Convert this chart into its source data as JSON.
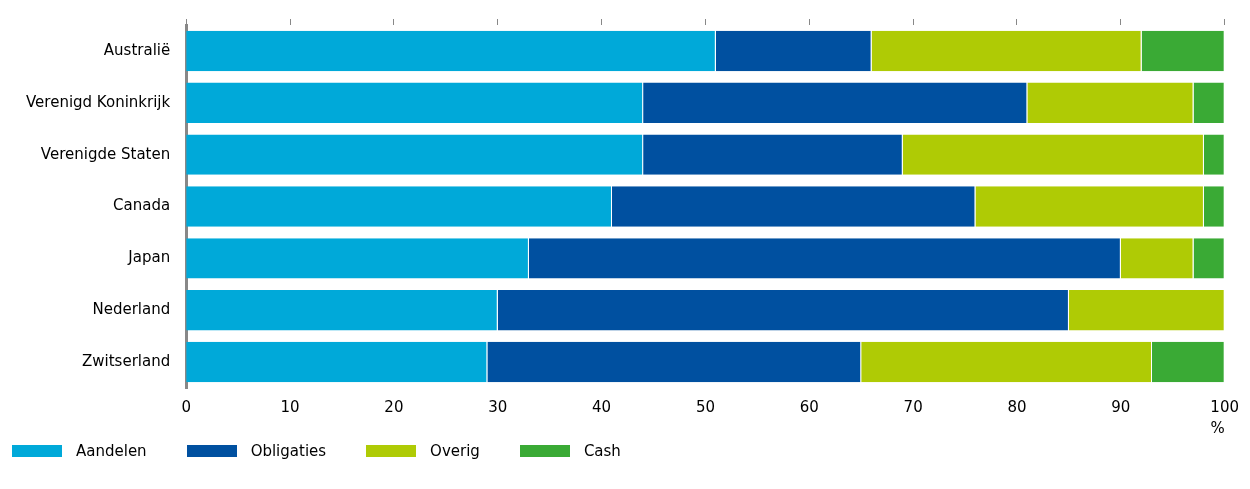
{
  "chart_data": {
    "type": "bar",
    "orientation": "horizontal",
    "stacked": true,
    "xlabel": "%",
    "categories": [
      "Australië",
      "Verenigd Koninkrijk",
      "Verenigde Staten",
      "Canada",
      "Japan",
      "Nederland",
      "Zwitserland"
    ],
    "series": [
      {
        "name": "Aandelen",
        "color": "#00a9d9",
        "values": [
          51,
          44,
          44,
          41,
          33,
          30,
          29
        ]
      },
      {
        "name": "Obligaties",
        "color": "#0050a0",
        "values": [
          15,
          37,
          25,
          35,
          57,
          55,
          36
        ]
      },
      {
        "name": "Overig",
        "color": "#afcb05",
        "values": [
          26,
          16,
          29,
          22,
          7,
          15,
          28
        ]
      },
      {
        "name": "Cash",
        "color": "#3aaa35",
        "values": [
          8,
          3,
          2,
          2,
          3,
          0,
          7
        ]
      }
    ],
    "xlim": [
      0,
      100
    ],
    "xticks": [
      0,
      10,
      20,
      30,
      40,
      50,
      60,
      70,
      80,
      90,
      100
    ],
    "grid": false,
    "legend": "bottom"
  }
}
